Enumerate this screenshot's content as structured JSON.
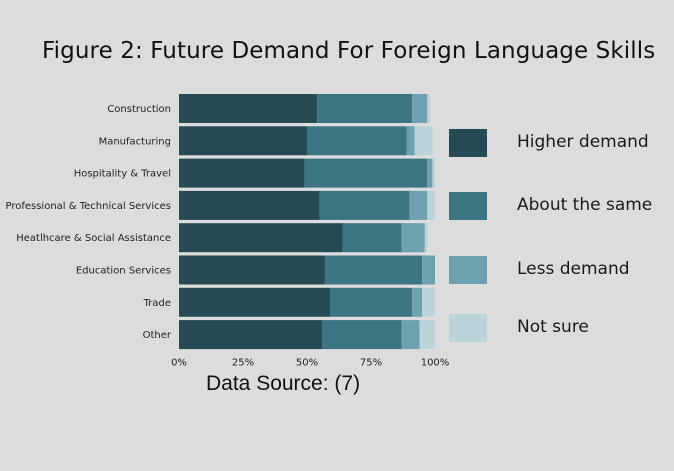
{
  "chart_data": {
    "type": "bar",
    "orientation": "horizontal",
    "stacked": true,
    "title": "Figure 2: Future Demand For Foreign Language Skills",
    "categories": [
      "Construction",
      "Manufacturing",
      "Hospitality & Travel",
      "Professional & Technical Services",
      "Heatlhcare & Social Assistance",
      "Education Services",
      "Trade",
      "Other"
    ],
    "series": [
      {
        "name": "Higher demand",
        "color": "#274b55",
        "values": [
          54,
          50,
          49,
          55,
          64,
          57,
          59,
          56
        ]
      },
      {
        "name": "About the same",
        "color": "#3c7582",
        "values": [
          37,
          39,
          48,
          35,
          23,
          38,
          32,
          31
        ]
      },
      {
        "name": "Less demand",
        "color": "#6da1af",
        "values": [
          6,
          3,
          2,
          7,
          9,
          5,
          4,
          7
        ]
      },
      {
        "name": "Not sure",
        "color": "#bcd3da",
        "values": [
          1,
          7,
          1,
          3,
          1,
          0,
          5,
          6
        ]
      }
    ],
    "xlim": [
      0,
      100
    ],
    "x_ticks": [
      "0%",
      "25%",
      "50%",
      "75%",
      "100%"
    ],
    "legend_position": "right",
    "grid": false
  },
  "source": "Data Source: (7)"
}
